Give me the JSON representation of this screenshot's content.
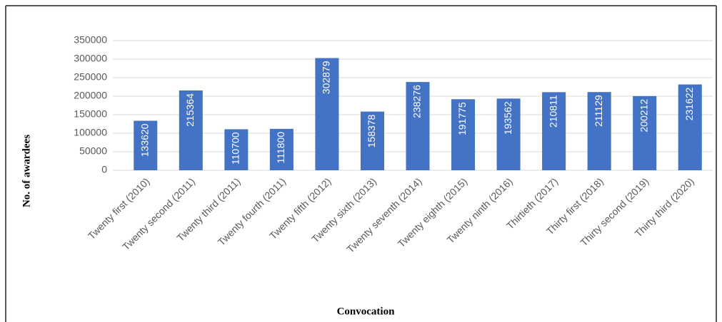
{
  "chart_data": {
    "type": "bar",
    "x_label": "Convocation",
    "y_label": "No. of awardees",
    "categories": [
      "Twenty first (2010)",
      "Twenty second (2011)",
      "Twenty third (2011)",
      "Twenty fourth (2011)",
      "Twenty fifth (2012)",
      "Twenty sixth (2013)",
      "Twenty seventh (2014)",
      "Twenty eighth (2015)",
      "Twenty ninth (2016)",
      "Thirtieth (2017)",
      "Thirty first (2018)",
      "Thirty second (2019)",
      "Thirty third (2020)"
    ],
    "values": [
      133620,
      215364,
      110700,
      111800,
      302879,
      158378,
      238276,
      191775,
      193562,
      210811,
      211129,
      200212,
      231622
    ],
    "color": "#4472c4",
    "ylim": [
      0,
      350000
    ],
    "yticks": [
      0,
      50000,
      100000,
      150000,
      200000,
      250000,
      300000,
      350000
    ],
    "grid": true
  }
}
